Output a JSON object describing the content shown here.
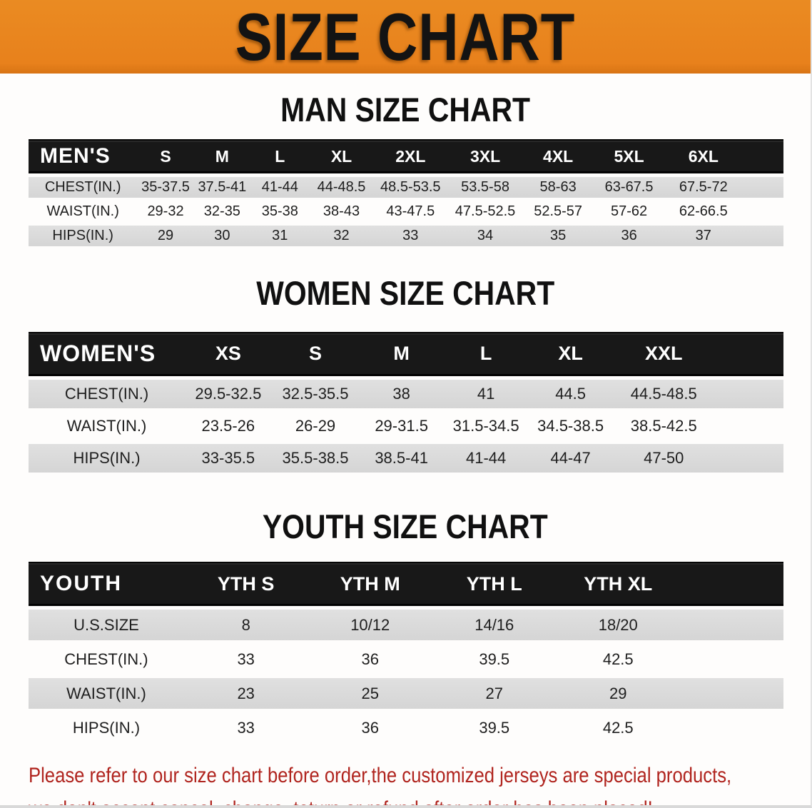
{
  "banner": {
    "title": "SIZE CHART"
  },
  "sections": [
    {
      "id": "men",
      "heading": "MAN SIZE CHART",
      "table": {
        "label": "MEN'S",
        "columns": [
          "S",
          "M",
          "L",
          "XL",
          "2XL",
          "3XL",
          "4XL",
          "5XL",
          "6XL"
        ],
        "rows": [
          {
            "label": "CHEST(IN.)",
            "values": [
              "35-37.5",
              "37.5-41",
              "41-44",
              "44-48.5",
              "48.5-53.5",
              "53.5-58",
              "58-63",
              "63-67.5",
              "67.5-72"
            ]
          },
          {
            "label": "WAIST(IN.)",
            "values": [
              "29-32",
              "32-35",
              "35-38",
              "38-43",
              "43-47.5",
              "47.5-52.5",
              "52.5-57",
              "57-62",
              "62-66.5"
            ]
          },
          {
            "label": "HIPS(IN.)",
            "values": [
              "29",
              "30",
              "31",
              "32",
              "33",
              "34",
              "35",
              "36",
              "37"
            ]
          }
        ]
      }
    },
    {
      "id": "women",
      "heading": "WOMEN SIZE CHART",
      "table": {
        "label": "WOMEN'S",
        "columns": [
          "XS",
          "S",
          "M",
          "L",
          "XL",
          "XXL"
        ],
        "rows": [
          {
            "label": "CHEST(IN.)",
            "values": [
              "29.5-32.5",
              "32.5-35.5",
              "38",
              "41",
              "44.5",
              "44.5-48.5"
            ]
          },
          {
            "label": "WAIST(IN.)",
            "values": [
              "23.5-26",
              "26-29",
              "29-31.5",
              "31.5-34.5",
              "34.5-38.5",
              "38.5-42.5"
            ]
          },
          {
            "label": "HIPS(IN.)",
            "values": [
              "33-35.5",
              "35.5-38.5",
              "38.5-41",
              "41-44",
              "44-47",
              "47-50"
            ]
          }
        ]
      }
    },
    {
      "id": "youth",
      "heading": "YOUTH SIZE CHART",
      "table": {
        "label": "YOUTH",
        "columns": [
          "YTH S",
          "YTH M",
          "YTH L",
          "YTH XL"
        ],
        "rows": [
          {
            "label": "U.S.SIZE",
            "values": [
              "8",
              "10/12",
              "14/16",
              "18/20"
            ]
          },
          {
            "label": "CHEST(IN.)",
            "values": [
              "33",
              "36",
              "39.5",
              "42.5"
            ]
          },
          {
            "label": "WAIST(IN.)",
            "values": [
              "23",
              "25",
              "27",
              "29"
            ]
          },
          {
            "label": "HIPS(IN.)",
            "values": [
              "33",
              "36",
              "39.5",
              "42.5"
            ]
          }
        ]
      }
    }
  ],
  "note": {
    "line1": "Please refer to our size chart before order,the customized jerseys are special products,",
    "line2": "we don't accept cancel, change, teturn or refund after order has been placed!"
  },
  "colors": {
    "banner_orange": "#E8811C",
    "header_black": "#181818",
    "row_gray": "#DADADA",
    "note_red": "#B0241E",
    "banner_text": "#131313"
  }
}
